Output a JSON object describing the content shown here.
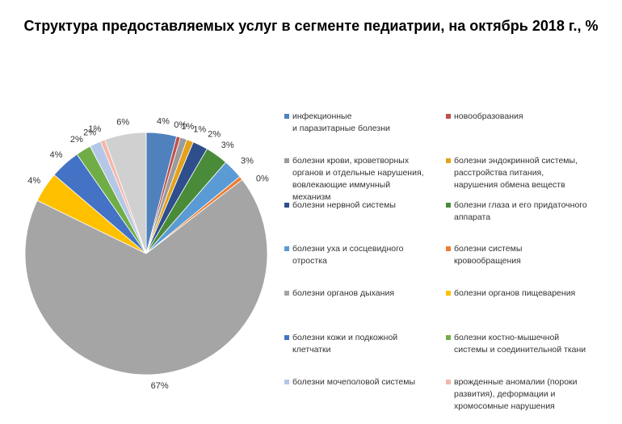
{
  "title": "Структура предоставляемых услуг в сегменте педиатрии, на октябрь 2018 г., %",
  "chart_data": {
    "type": "pie",
    "title": "Структура предоставляемых услуг в сегменте педиатрии, на октябрь 2018 г., %",
    "legend_position": "right",
    "slices": [
      {
        "label": "инфекционные\nи паразитарные болезни",
        "value": 4,
        "display": "4%",
        "color": "#4F81BD"
      },
      {
        "label": "новообразования",
        "value": 0.5,
        "display": "0%",
        "color": "#C0504D"
      },
      {
        "label": "болезни крови, кроветворных органов и отдельные нарушения, вовлекающие иммунный механизм",
        "value": 0.9,
        "display": "1%",
        "color": "#9B9B9B"
      },
      {
        "label": "болезни эндокринной системы, расстройства питания, нарушения обмена веществ",
        "value": 0.9,
        "display": "1%",
        "color": "#E3A21A"
      },
      {
        "label": "болезни нервной системы",
        "value": 2,
        "display": "2%",
        "color": "#2E4E8C"
      },
      {
        "label": "болезни глаза и его придаточного аппарата",
        "value": 3,
        "display": "3%",
        "color": "#4A8B3A"
      },
      {
        "label": "болезни уха и сосцевидного отростка",
        "value": 2.6,
        "display": "3%",
        "color": "#5B9BD5"
      },
      {
        "label": "болезни системы кровообращения",
        "value": 0.5,
        "display": "0%",
        "color": "#ED7D31"
      },
      {
        "label": "болезни органов дыхания",
        "value": 67,
        "display": "67%",
        "color": "#A5A5A5"
      },
      {
        "label": "болезни органов пищеварения",
        "value": 4,
        "display": "4%",
        "color": "#FFC000"
      },
      {
        "label": "болезни кожи и подкожной клетчатки",
        "value": 4,
        "display": "4%",
        "color": "#4472C4"
      },
      {
        "label": "болезни костно-мышечной системы и соединительной ткани",
        "value": 2,
        "display": "2%",
        "color": "#70AD47"
      },
      {
        "label": "болезни мочеполовой системы",
        "value": 1.5,
        "display": "2%",
        "color": "#B4C7E7"
      },
      {
        "label": "врожденные аномалии (пороки развития), деформации и хромосомные нарушения",
        "value": 0.6,
        "display": "1%",
        "color": "#F4B6A8"
      },
      {
        "label": "",
        "value": 5.5,
        "display": "6%",
        "color": "#D0D0D0"
      }
    ]
  },
  "legend": [
    {
      "text": "инфекционные\nи паразитарные болезни",
      "color": "#4F81BD"
    },
    {
      "text": "новообразования",
      "color": "#C0504D"
    },
    {
      "text": "болезни крови, кроветворных\nорганов и отдельные нарушения,\nвовлекающие иммунный\nмеханизм",
      "color": "#9B9B9B"
    },
    {
      "text": "болезни эндокринной системы,\nрасстройства питания,\nнарушения обмена веществ",
      "color": "#E3A21A"
    },
    {
      "text": "болезни нервной системы",
      "color": "#2E4E8C"
    },
    {
      "text": "болезни глаза и его придаточного\nаппарата",
      "color": "#4A8B3A"
    },
    {
      "text": "болезни уха и сосцевидного\nотростка",
      "color": "#5B9BD5"
    },
    {
      "text": "болезни системы\nкровообращения",
      "color": "#ED7D31"
    },
    {
      "text": "болезни органов дыхания",
      "color": "#A5A5A5"
    },
    {
      "text": "болезни органов пищеварения",
      "color": "#FFC000"
    },
    {
      "text": "болезни кожи и подкожной\nклетчатки",
      "color": "#4472C4"
    },
    {
      "text": "болезни костно-мышечной\nсистемы и соединительной ткани",
      "color": "#70AD47"
    },
    {
      "text": "болезни мочеполовой системы",
      "color": "#B4C7E7"
    },
    {
      "text": "врожденные аномалии (пороки\nразвития), деформации и\nхромосомные нарушения",
      "color": "#F4B6A8"
    }
  ]
}
